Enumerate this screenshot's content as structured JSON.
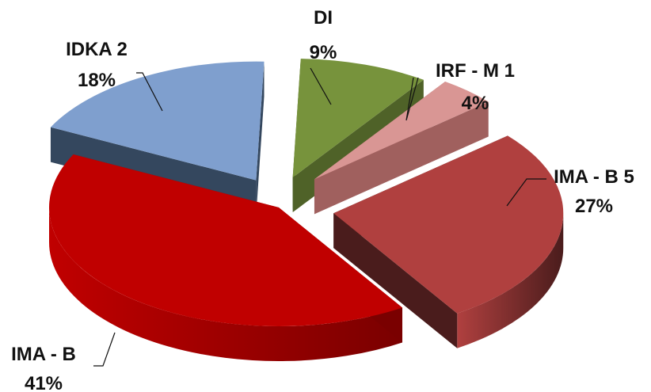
{
  "chart_data": {
    "type": "pie",
    "title": "",
    "slices": [
      {
        "name": "DI",
        "label": "DI",
        "pct_label": "9%",
        "value": 9,
        "color": "#77933c",
        "side": "#4f6228"
      },
      {
        "name": "IRF - M 1",
        "label": "IRF - M 1",
        "pct_label": "4%",
        "value": 4,
        "color": "#d99694",
        "side": "#a0605e"
      },
      {
        "name": "IMA - B 5",
        "label": "IMA - B 5",
        "pct_label": "27%",
        "value": 27,
        "color": "#b0403f",
        "side": "#4a1c1c"
      },
      {
        "name": "IMA - B",
        "label": "IMA - B",
        "pct_label": "41%",
        "value": 41,
        "color": "#c00000",
        "side": "#7a0000"
      },
      {
        "name": "IDKA 2",
        "label": "IDKA 2",
        "pct_label": "18%",
        "value": 18,
        "color": "#7f9fce",
        "side": "#34475e"
      }
    ],
    "extra_side_colors": [
      "#8b8b00",
      "#7f6000"
    ],
    "legend": "none"
  }
}
